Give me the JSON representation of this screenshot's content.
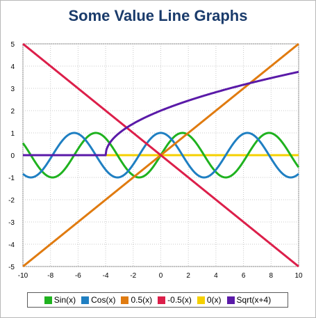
{
  "chart_data": {
    "type": "line",
    "title": "Some Value Line Graphs",
    "xlabel": "",
    "ylabel": "",
    "xlim": [
      -10,
      10
    ],
    "ylim": [
      -5,
      5
    ],
    "x_ticks": [
      -10,
      -8,
      -6,
      -4,
      -2,
      0,
      2,
      4,
      6,
      8,
      10
    ],
    "y_ticks": [
      -5,
      -4,
      -3,
      -2,
      -1,
      0,
      1,
      2,
      3,
      4,
      5
    ],
    "grid": true,
    "legend_position": "bottom",
    "series": [
      {
        "name": "Sin(x)",
        "color": "#1fb21f",
        "function": "sin",
        "x": [
          -10,
          -8,
          -6,
          -4,
          -2,
          0,
          2,
          4,
          6,
          8,
          10
        ],
        "values": [
          0.54,
          -0.99,
          0.28,
          0.76,
          -0.91,
          0,
          0.91,
          -0.76,
          -0.28,
          0.99,
          -0.54
        ]
      },
      {
        "name": "Cos(x)",
        "color": "#1f7fc2",
        "function": "cos",
        "x": [
          -10,
          -8,
          -6,
          -4,
          -2,
          0,
          2,
          4,
          6,
          8,
          10
        ],
        "values": [
          -0.84,
          -0.15,
          0.96,
          -0.65,
          -0.42,
          1,
          -0.42,
          -0.65,
          0.96,
          -0.15,
          -0.84
        ]
      },
      {
        "name": "0.5(x)",
        "color": "#e07b10",
        "function": "half",
        "x": [
          -10,
          10
        ],
        "values": [
          -5,
          5
        ]
      },
      {
        "name": "-0.5(x)",
        "color": "#dc1f4a",
        "function": "neghalf",
        "x": [
          -10,
          10
        ],
        "values": [
          5,
          -5
        ]
      },
      {
        "name": "0(x)",
        "color": "#f5d000",
        "function": "zero",
        "x": [
          -10,
          10
        ],
        "values": [
          0,
          0
        ]
      },
      {
        "name": "Sqrt(x+4)",
        "color": "#5a1aa8",
        "function": "sqrt4",
        "x": [
          -10,
          -4,
          -3,
          0,
          5,
          10
        ],
        "values": [
          0,
          0,
          1,
          2,
          3,
          3.74
        ]
      }
    ]
  }
}
